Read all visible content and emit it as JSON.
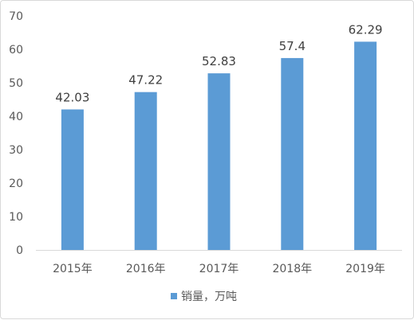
{
  "chart_data": {
    "type": "bar",
    "categories": [
      "2015年",
      "2016年",
      "2017年",
      "2018年",
      "2019年"
    ],
    "series": [
      {
        "name": "销量，万吨",
        "values": [
          42.03,
          47.22,
          52.83,
          57.4,
          62.29
        ],
        "labels": [
          "42.03",
          "47.22",
          "52.83",
          "57.4",
          "62.29"
        ],
        "color": "#5b9bd5"
      }
    ],
    "ylim": [
      0,
      70
    ],
    "yticks": [
      0,
      10,
      20,
      30,
      40,
      50,
      60,
      70
    ],
    "grid": false,
    "legend": "bottom"
  }
}
